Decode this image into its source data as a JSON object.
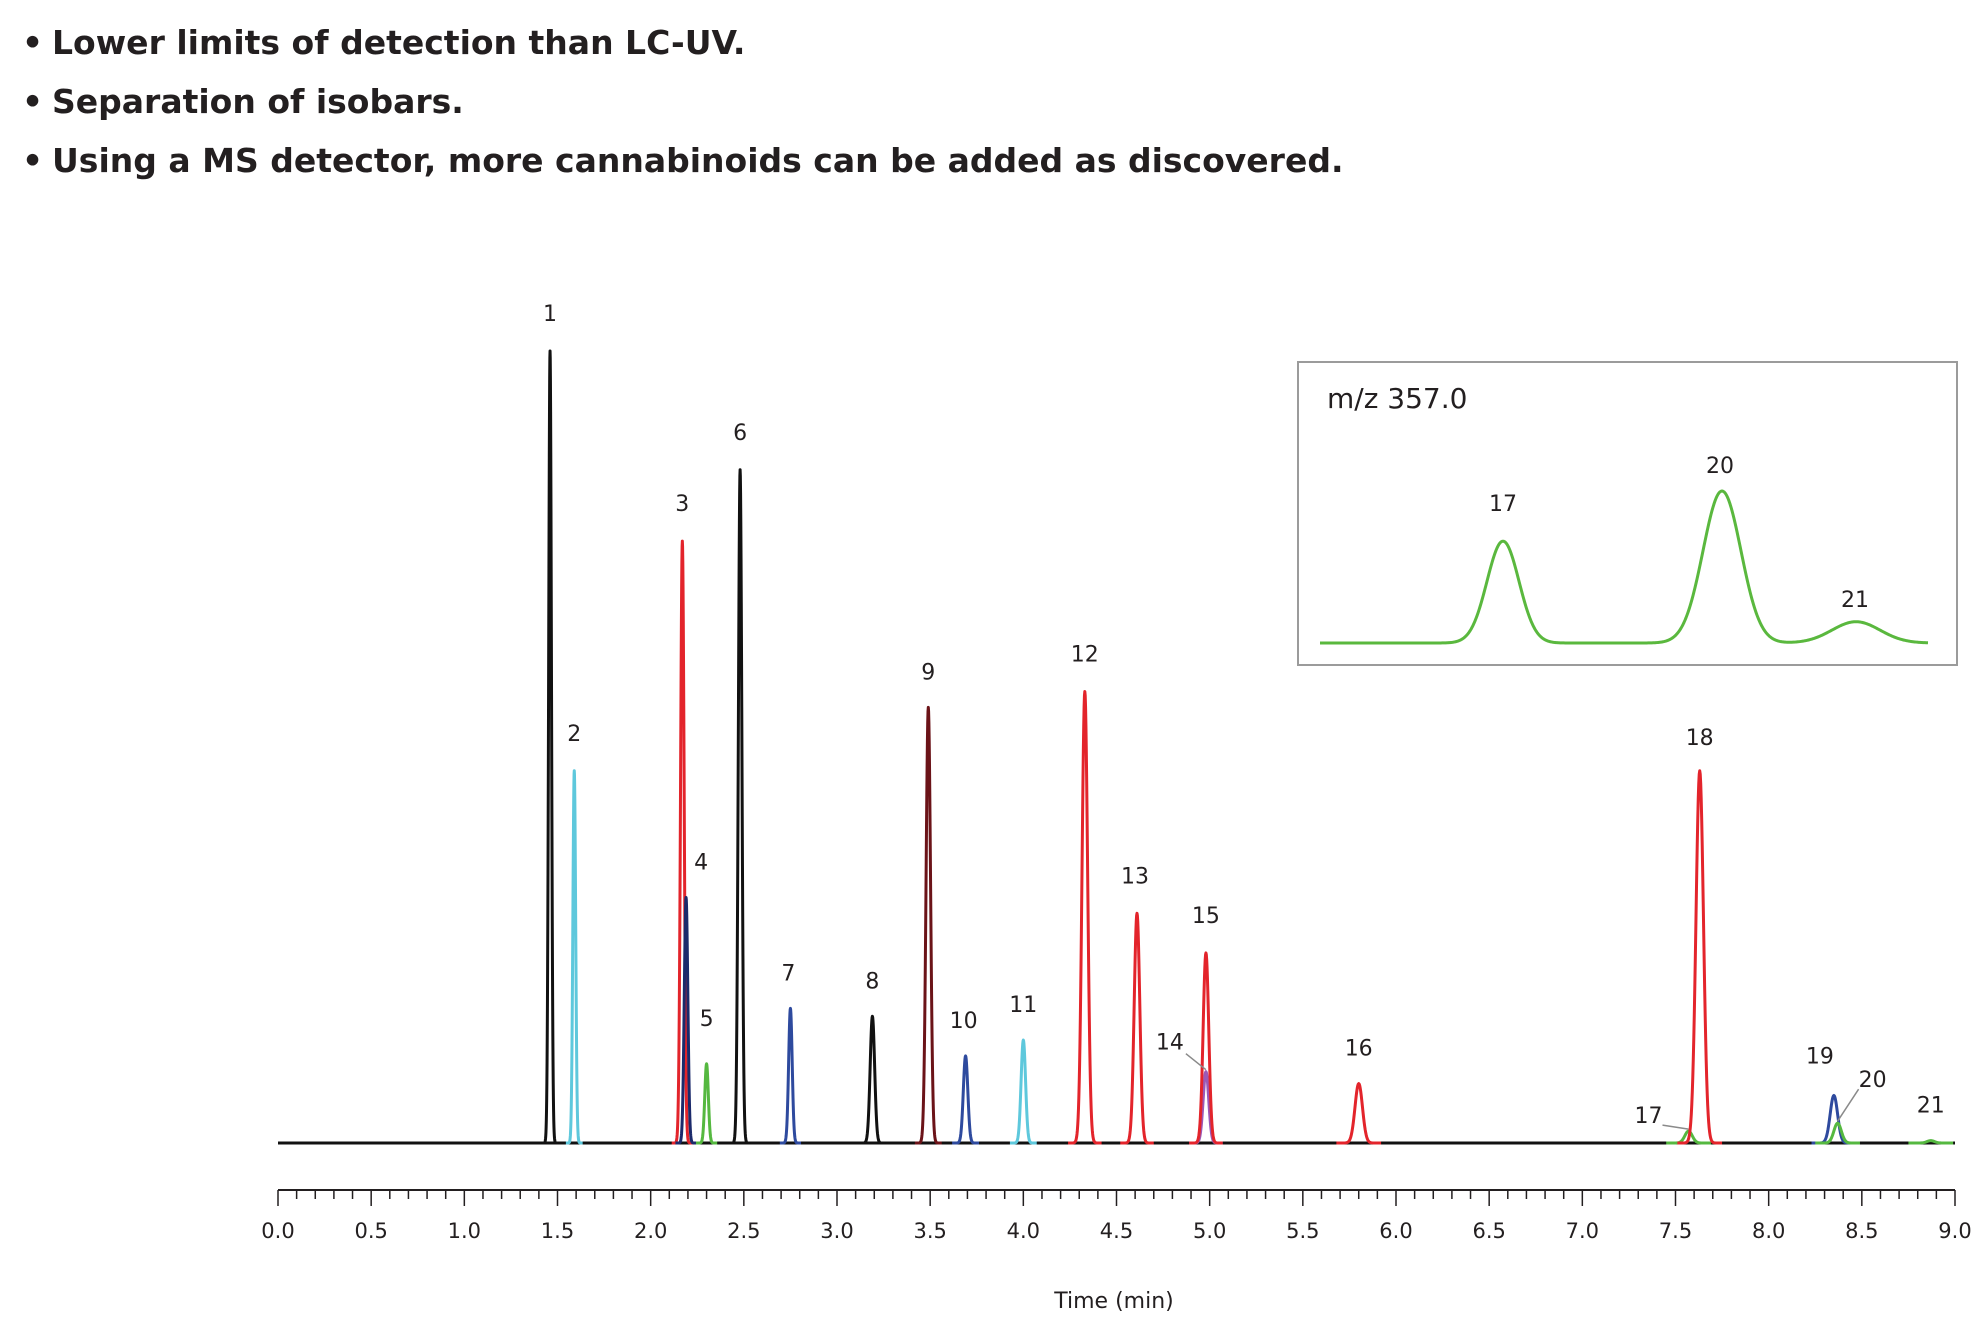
{
  "bullets": [
    "Lower limits of detection than LC-UV.",
    "Separation of isobars.",
    "Using a MS detector, more cannabinoids can be added as discovered."
  ],
  "chart_data": [
    {
      "type": "line",
      "xlabel": "Time (min)",
      "xlim": [
        0.0,
        9.0
      ],
      "xticks": [
        "0.0",
        "0.5",
        "1.0",
        "1.5",
        "2.0",
        "2.5",
        "3.0",
        "3.5",
        "4.0",
        "4.5",
        "5.0",
        "5.5",
        "6.0",
        "6.5",
        "7.0",
        "7.5",
        "8.0",
        "8.5",
        "9.0"
      ],
      "ylim": [
        0,
        100
      ],
      "yaxis_shown": false,
      "grid": false,
      "peaks": [
        {
          "label": "1",
          "rt": 1.46,
          "height": 100,
          "color": "#111111"
        },
        {
          "label": "2",
          "rt": 1.59,
          "height": 47,
          "color": "#5ec8dc"
        },
        {
          "label": "3",
          "rt": 2.17,
          "height": 76,
          "color": "#e3242b"
        },
        {
          "label": "4",
          "rt": 2.19,
          "height": 31,
          "color": "#1b2a6b"
        },
        {
          "label": "5",
          "rt": 2.3,
          "height": 10,
          "color": "#55b840"
        },
        {
          "label": "6",
          "rt": 2.48,
          "height": 85,
          "color": "#111111"
        },
        {
          "label": "7",
          "rt": 2.75,
          "height": 17,
          "color": "#2e4a9e"
        },
        {
          "label": "8",
          "rt": 3.19,
          "height": 16,
          "color": "#111111"
        },
        {
          "label": "9",
          "rt": 3.49,
          "height": 55,
          "color": "#6b1318"
        },
        {
          "label": "10",
          "rt": 3.69,
          "height": 11,
          "color": "#2e4a9e"
        },
        {
          "label": "11",
          "rt": 4.0,
          "height": 13,
          "color": "#5ec8dc"
        },
        {
          "label": "12",
          "rt": 4.33,
          "height": 57,
          "color": "#e3242b"
        },
        {
          "label": "13",
          "rt": 4.61,
          "height": 29,
          "color": "#e3242b"
        },
        {
          "label": "14",
          "rt": 4.98,
          "height": 9,
          "color": "#9b59b6"
        },
        {
          "label": "15",
          "rt": 4.98,
          "height": 24,
          "color": "#e3242b"
        },
        {
          "label": "16",
          "rt": 5.8,
          "height": 7.5,
          "color": "#e3242b"
        },
        {
          "label": "17",
          "rt": 7.57,
          "height": 1.5,
          "color": "#55b840"
        },
        {
          "label": "18",
          "rt": 7.63,
          "height": 47,
          "color": "#e3242b"
        },
        {
          "label": "19",
          "rt": 8.35,
          "height": 6,
          "color": "#2e4a9e"
        },
        {
          "label": "20",
          "rt": 8.37,
          "height": 2.5,
          "color": "#55b840"
        },
        {
          "label": "21",
          "rt": 8.87,
          "height": 0.3,
          "color": "#55b840"
        }
      ]
    },
    {
      "type": "line",
      "title": "m/z 357.0",
      "xaxis_shown": false,
      "yaxis_shown": false,
      "color": "#5ab83e",
      "peaks": [
        {
          "label": "17",
          "height": 67
        },
        {
          "label": "20",
          "height": 100
        },
        {
          "label": "21",
          "height": 14
        }
      ]
    }
  ]
}
